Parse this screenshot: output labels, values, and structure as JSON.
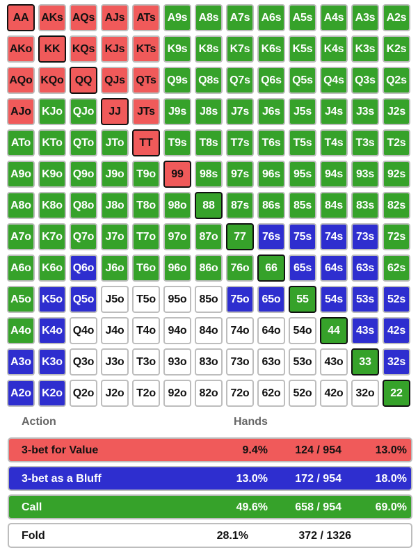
{
  "grid": {
    "rows": [
      [
        [
          "AA",
          "raise"
        ],
        [
          "AKs",
          "raise"
        ],
        [
          "AQs",
          "raise"
        ],
        [
          "AJs",
          "raise"
        ],
        [
          "ATs",
          "raise"
        ],
        [
          "A9s",
          "call"
        ],
        [
          "A8s",
          "call"
        ],
        [
          "A7s",
          "call"
        ],
        [
          "A6s",
          "call"
        ],
        [
          "A5s",
          "call"
        ],
        [
          "A4s",
          "call"
        ],
        [
          "A3s",
          "call"
        ],
        [
          "A2s",
          "call"
        ]
      ],
      [
        [
          "AKo",
          "raise"
        ],
        [
          "KK",
          "raise"
        ],
        [
          "KQs",
          "raise"
        ],
        [
          "KJs",
          "raise"
        ],
        [
          "KTs",
          "raise"
        ],
        [
          "K9s",
          "call"
        ],
        [
          "K8s",
          "call"
        ],
        [
          "K7s",
          "call"
        ],
        [
          "K6s",
          "call"
        ],
        [
          "K5s",
          "call"
        ],
        [
          "K4s",
          "call"
        ],
        [
          "K3s",
          "call"
        ],
        [
          "K2s",
          "call"
        ]
      ],
      [
        [
          "AQo",
          "raise"
        ],
        [
          "KQo",
          "raise"
        ],
        [
          "QQ",
          "raise"
        ],
        [
          "QJs",
          "raise"
        ],
        [
          "QTs",
          "raise"
        ],
        [
          "Q9s",
          "call"
        ],
        [
          "Q8s",
          "call"
        ],
        [
          "Q7s",
          "call"
        ],
        [
          "Q6s",
          "call"
        ],
        [
          "Q5s",
          "call"
        ],
        [
          "Q4s",
          "call"
        ],
        [
          "Q3s",
          "call"
        ],
        [
          "Q2s",
          "call"
        ]
      ],
      [
        [
          "AJo",
          "raise"
        ],
        [
          "KJo",
          "call"
        ],
        [
          "QJo",
          "call"
        ],
        [
          "JJ",
          "raise"
        ],
        [
          "JTs",
          "raise"
        ],
        [
          "J9s",
          "call"
        ],
        [
          "J8s",
          "call"
        ],
        [
          "J7s",
          "call"
        ],
        [
          "J6s",
          "call"
        ],
        [
          "J5s",
          "call"
        ],
        [
          "J4s",
          "call"
        ],
        [
          "J3s",
          "call"
        ],
        [
          "J2s",
          "call"
        ]
      ],
      [
        [
          "ATo",
          "call"
        ],
        [
          "KTo",
          "call"
        ],
        [
          "QTo",
          "call"
        ],
        [
          "JTo",
          "call"
        ],
        [
          "TT",
          "raise"
        ],
        [
          "T9s",
          "call"
        ],
        [
          "T8s",
          "call"
        ],
        [
          "T7s",
          "call"
        ],
        [
          "T6s",
          "call"
        ],
        [
          "T5s",
          "call"
        ],
        [
          "T4s",
          "call"
        ],
        [
          "T3s",
          "call"
        ],
        [
          "T2s",
          "call"
        ]
      ],
      [
        [
          "A9o",
          "call"
        ],
        [
          "K9o",
          "call"
        ],
        [
          "Q9o",
          "call"
        ],
        [
          "J9o",
          "call"
        ],
        [
          "T9o",
          "call"
        ],
        [
          "99",
          "raise"
        ],
        [
          "98s",
          "call"
        ],
        [
          "97s",
          "call"
        ],
        [
          "96s",
          "call"
        ],
        [
          "95s",
          "call"
        ],
        [
          "94s",
          "call"
        ],
        [
          "93s",
          "call"
        ],
        [
          "92s",
          "call"
        ]
      ],
      [
        [
          "A8o",
          "call"
        ],
        [
          "K8o",
          "call"
        ],
        [
          "Q8o",
          "call"
        ],
        [
          "J8o",
          "call"
        ],
        [
          "T8o",
          "call"
        ],
        [
          "98o",
          "call"
        ],
        [
          "88",
          "call"
        ],
        [
          "87s",
          "call"
        ],
        [
          "86s",
          "call"
        ],
        [
          "85s",
          "call"
        ],
        [
          "84s",
          "call"
        ],
        [
          "83s",
          "call"
        ],
        [
          "82s",
          "call"
        ]
      ],
      [
        [
          "A7o",
          "call"
        ],
        [
          "K7o",
          "call"
        ],
        [
          "Q7o",
          "call"
        ],
        [
          "J7o",
          "call"
        ],
        [
          "T7o",
          "call"
        ],
        [
          "97o",
          "call"
        ],
        [
          "87o",
          "call"
        ],
        [
          "77",
          "call"
        ],
        [
          "76s",
          "bluff"
        ],
        [
          "75s",
          "bluff"
        ],
        [
          "74s",
          "bluff"
        ],
        [
          "73s",
          "bluff"
        ],
        [
          "72s",
          "call"
        ]
      ],
      [
        [
          "A6o",
          "call"
        ],
        [
          "K6o",
          "call"
        ],
        [
          "Q6o",
          "bluff"
        ],
        [
          "J6o",
          "call"
        ],
        [
          "T6o",
          "call"
        ],
        [
          "96o",
          "call"
        ],
        [
          "86o",
          "call"
        ],
        [
          "76o",
          "call"
        ],
        [
          "66",
          "call"
        ],
        [
          "65s",
          "bluff"
        ],
        [
          "64s",
          "bluff"
        ],
        [
          "63s",
          "bluff"
        ],
        [
          "62s",
          "call"
        ]
      ],
      [
        [
          "A5o",
          "call"
        ],
        [
          "K5o",
          "bluff"
        ],
        [
          "Q5o",
          "bluff"
        ],
        [
          "J5o",
          "fold"
        ],
        [
          "T5o",
          "fold"
        ],
        [
          "95o",
          "fold"
        ],
        [
          "85o",
          "fold"
        ],
        [
          "75o",
          "bluff"
        ],
        [
          "65o",
          "bluff"
        ],
        [
          "55",
          "call"
        ],
        [
          "54s",
          "bluff"
        ],
        [
          "53s",
          "bluff"
        ],
        [
          "52s",
          "bluff"
        ]
      ],
      [
        [
          "A4o",
          "call"
        ],
        [
          "K4o",
          "bluff"
        ],
        [
          "Q4o",
          "fold"
        ],
        [
          "J4o",
          "fold"
        ],
        [
          "T4o",
          "fold"
        ],
        [
          "94o",
          "fold"
        ],
        [
          "84o",
          "fold"
        ],
        [
          "74o",
          "fold"
        ],
        [
          "64o",
          "fold"
        ],
        [
          "54o",
          "fold"
        ],
        [
          "44",
          "call"
        ],
        [
          "43s",
          "bluff"
        ],
        [
          "42s",
          "bluff"
        ]
      ],
      [
        [
          "A3o",
          "bluff"
        ],
        [
          "K3o",
          "bluff"
        ],
        [
          "Q3o",
          "fold"
        ],
        [
          "J3o",
          "fold"
        ],
        [
          "T3o",
          "fold"
        ],
        [
          "93o",
          "fold"
        ],
        [
          "83o",
          "fold"
        ],
        [
          "73o",
          "fold"
        ],
        [
          "63o",
          "fold"
        ],
        [
          "53o",
          "fold"
        ],
        [
          "43o",
          "fold"
        ],
        [
          "33",
          "call"
        ],
        [
          "32s",
          "bluff"
        ]
      ],
      [
        [
          "A2o",
          "bluff"
        ],
        [
          "K2o",
          "bluff"
        ],
        [
          "Q2o",
          "fold"
        ],
        [
          "J2o",
          "fold"
        ],
        [
          "T2o",
          "fold"
        ],
        [
          "92o",
          "fold"
        ],
        [
          "82o",
          "fold"
        ],
        [
          "72o",
          "fold"
        ],
        [
          "62o",
          "fold"
        ],
        [
          "52o",
          "fold"
        ],
        [
          "42o",
          "fold"
        ],
        [
          "32o",
          "fold"
        ],
        [
          "22",
          "call"
        ]
      ]
    ]
  },
  "headers": {
    "action": "Action",
    "hands": "Hands"
  },
  "legend": [
    {
      "key": "raise",
      "label": "3-bet for Value",
      "pct": "9.4%",
      "count": "124 / 954",
      "ratio": "13.0%"
    },
    {
      "key": "bluff",
      "label": "3-bet as a Bluff",
      "pct": "13.0%",
      "count": "172 / 954",
      "ratio": "18.0%"
    },
    {
      "key": "call",
      "label": "Call",
      "pct": "49.6%",
      "count": "658 / 954",
      "ratio": "69.0%"
    },
    {
      "key": "fold",
      "label": "Fold",
      "pct": "28.1%",
      "count": "372 / 1326",
      "ratio": ""
    }
  ],
  "colors": {
    "raise": "#f05a5a",
    "bluff": "#2e2ecf",
    "call": "#36a22a",
    "fold": "#ffffff"
  }
}
